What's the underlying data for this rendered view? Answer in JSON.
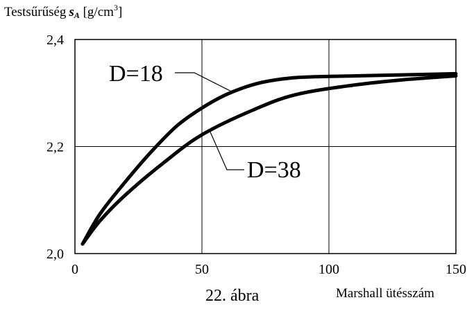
{
  "chart_data": {
    "type": "line",
    "ylabel": {
      "text": "Testsűrűség",
      "symbol": "s",
      "subscript": "A",
      "unit_prefix": "[g/cm",
      "unit_sup": "3",
      "unit_suffix": "]"
    },
    "xlabel": "Marshall ütésszám",
    "caption": "22. ábra",
    "xlim": [
      0,
      150
    ],
    "ylim": [
      2.0,
      2.4
    ],
    "xticks": [
      0,
      50,
      100,
      150
    ],
    "yticks": [
      2.0,
      2.2,
      2.4
    ],
    "xtick_labels": [
      "0",
      "50",
      "100",
      "150"
    ],
    "ytick_labels": [
      "2,0",
      "2,2",
      "2,4"
    ],
    "grid": true,
    "series": [
      {
        "name": "D=18",
        "x": [
          3,
          10,
          20,
          30,
          40,
          50,
          60,
          72,
          85,
          100,
          120,
          150
        ],
        "y": [
          2.018,
          2.075,
          2.135,
          2.19,
          2.238,
          2.272,
          2.298,
          2.318,
          2.328,
          2.331,
          2.333,
          2.336
        ]
      },
      {
        "name": "D=38",
        "x": [
          3,
          10,
          20,
          35,
          50,
          70,
          87,
          110,
          130,
          150
        ],
        "y": [
          2.018,
          2.062,
          2.11,
          2.17,
          2.222,
          2.268,
          2.297,
          2.315,
          2.325,
          2.332
        ]
      }
    ],
    "annotations": [
      {
        "text": "D=18",
        "series": 0,
        "anchor_x": 62,
        "anchor_y": 2.302
      },
      {
        "text": "D=38",
        "series": 1,
        "anchor_x": 53,
        "anchor_y": 2.23
      }
    ],
    "colors": {
      "line": "#000000",
      "grid": "#000000",
      "background": "#ffffff"
    }
  }
}
